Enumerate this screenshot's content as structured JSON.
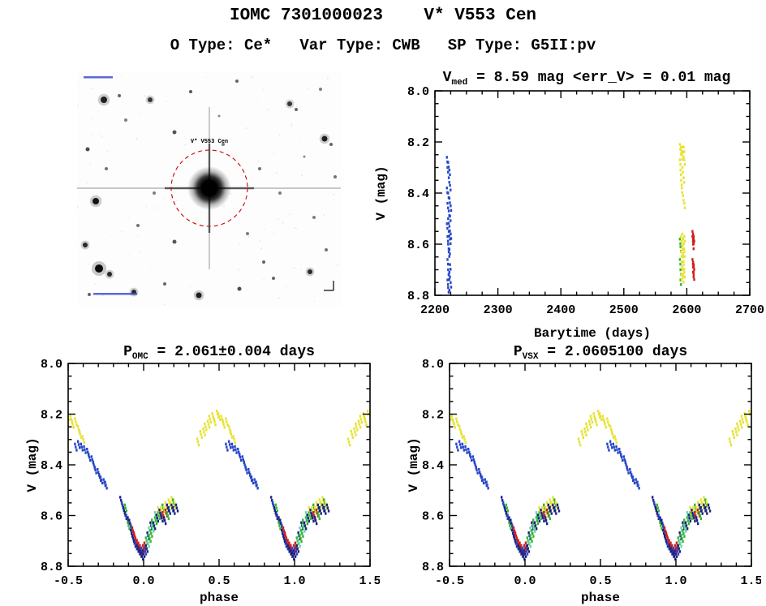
{
  "header": {
    "title": "IOMC 7301000023    V* V553 Cen",
    "subtitle": "O Type: Ce*   Var Type: CWB   SP Type: G5II:pv"
  },
  "palette": {
    "b": "#2646c8",
    "n": "#1b2380",
    "g": "#2fb52f",
    "c": "#66d9a0",
    "y": "#e6e332",
    "r": "#d01f1f"
  },
  "finder": {
    "label": "V* V553 Cen",
    "circle_color": "#cc0000",
    "smudge_color": "#3344cc",
    "stars": [
      [
        33,
        35,
        4,
        0.85
      ],
      [
        52,
        30,
        2,
        0.6
      ],
      [
        90,
        35,
        3,
        0.75
      ],
      [
        140,
        25,
        2,
        0.65
      ],
      [
        197,
        12,
        2,
        0.6
      ],
      [
        262,
        40,
        3,
        0.75
      ],
      [
        270,
        47,
        2,
        0.6
      ],
      [
        300,
        22,
        2,
        0.5
      ],
      [
        305,
        83,
        3.5,
        0.85
      ],
      [
        313,
        90,
        2,
        0.6
      ],
      [
        318,
        130,
        2,
        0.55
      ],
      [
        13,
        96,
        2.5,
        0.7
      ],
      [
        36,
        120,
        2,
        0.55
      ],
      [
        23,
        160,
        4,
        0.9
      ],
      [
        10,
        214,
        3,
        0.8
      ],
      [
        27,
        243,
        5,
        0.95
      ],
      [
        40,
        250,
        3,
        0.8
      ],
      [
        70,
        272,
        3,
        0.8
      ],
      [
        108,
        262,
        2,
        0.6
      ],
      [
        150,
        276,
        3.5,
        0.85
      ],
      [
        200,
        268,
        2.5,
        0.7
      ],
      [
        242,
        255,
        2,
        0.6
      ],
      [
        287,
        247,
        3,
        0.8
      ],
      [
        307,
        220,
        2,
        0.55
      ],
      [
        292,
        180,
        2,
        0.5
      ],
      [
        250,
        150,
        2,
        0.5
      ],
      [
        225,
        120,
        2,
        0.55
      ],
      [
        180,
        90,
        2,
        0.5
      ],
      [
        120,
        75,
        2.5,
        0.65
      ],
      [
        95,
        150,
        2,
        0.5
      ],
      [
        75,
        190,
        2,
        0.55
      ],
      [
        120,
        210,
        2.5,
        0.65
      ],
      [
        210,
        200,
        2,
        0.5
      ],
      [
        230,
        235,
        2,
        0.6
      ],
      [
        60,
        60,
        2,
        0.5
      ],
      [
        175,
        55,
        1.5,
        0.45
      ],
      [
        280,
        105,
        1.5,
        0.45
      ],
      [
        15,
        275,
        2,
        0.6
      ]
    ]
  },
  "chart_data": [
    {
      "id": "lightcurve",
      "type": "scatter",
      "title_parts": {
        "pre": "V",
        "sub": "med",
        "post": " = 8.59 mag <err_V> = 0.01 mag"
      },
      "xlabel": "Barytime (days)",
      "ylabel": "V (mag)",
      "xlim": [
        2200,
        2700
      ],
      "ylim": [
        8.0,
        8.8
      ],
      "xticks": [
        2200,
        2300,
        2400,
        2500,
        2600,
        2700
      ],
      "xtick_labels": [
        "2200",
        "2300",
        "2400",
        "2500",
        "2600",
        "2700"
      ],
      "yticks": [
        8.0,
        8.2,
        8.4,
        8.6,
        8.8
      ],
      "ytick_labels": [
        "8.0",
        "8.2",
        "8.4",
        "8.6",
        "8.8"
      ],
      "fold": false,
      "points": [
        [
          2219,
          8.26,
          "b"
        ],
        [
          2219,
          8.38,
          "b"
        ],
        [
          2219,
          8.52,
          "b"
        ],
        [
          2220,
          8.3,
          "b"
        ],
        [
          2220,
          8.44,
          "b"
        ],
        [
          2220,
          8.57,
          "b"
        ],
        [
          2220,
          8.66,
          "b"
        ],
        [
          2220,
          8.74,
          "b"
        ],
        [
          2221,
          8.28,
          "b"
        ],
        [
          2221,
          8.4,
          "b"
        ],
        [
          2221,
          8.5,
          "b"
        ],
        [
          2221,
          8.6,
          "b"
        ],
        [
          2221,
          8.7,
          "b"
        ],
        [
          2221,
          8.77,
          "b"
        ],
        [
          2222,
          8.34,
          "b"
        ],
        [
          2222,
          8.47,
          "b"
        ],
        [
          2222,
          8.55,
          "b"
        ],
        [
          2222,
          8.63,
          "b"
        ],
        [
          2222,
          8.72,
          "b"
        ],
        [
          2223,
          8.31,
          "b"
        ],
        [
          2223,
          8.42,
          "b"
        ],
        [
          2223,
          8.53,
          "b"
        ],
        [
          2223,
          8.62,
          "b"
        ],
        [
          2223,
          8.71,
          "b"
        ],
        [
          2223,
          8.78,
          "b"
        ],
        [
          2224,
          8.37,
          "b"
        ],
        [
          2224,
          8.49,
          "b"
        ],
        [
          2224,
          8.58,
          "b"
        ],
        [
          2224,
          8.68,
          "b"
        ],
        [
          2225,
          8.45,
          "b"
        ],
        [
          2225,
          8.56,
          "b"
        ],
        [
          2225,
          8.75,
          "b"
        ],
        [
          2589,
          8.21,
          "y"
        ],
        [
          2589,
          8.27,
          "y"
        ],
        [
          2590,
          8.23,
          "y"
        ],
        [
          2590,
          8.31,
          "y"
        ],
        [
          2591,
          8.22,
          "y"
        ],
        [
          2591,
          8.35,
          "y"
        ],
        [
          2592,
          8.25,
          "y"
        ],
        [
          2592,
          8.38,
          "y"
        ],
        [
          2593,
          8.22,
          "y"
        ],
        [
          2593,
          8.3,
          "y"
        ],
        [
          2594,
          8.24,
          "y"
        ],
        [
          2594,
          8.41,
          "y"
        ],
        [
          2595,
          8.22,
          "y"
        ],
        [
          2595,
          8.34,
          "y"
        ],
        [
          2596,
          8.27,
          "y"
        ],
        [
          2596,
          8.44,
          "y"
        ],
        [
          2589,
          8.58,
          "g"
        ],
        [
          2589,
          8.66,
          "g"
        ],
        [
          2590,
          8.61,
          "g"
        ],
        [
          2590,
          8.7,
          "g"
        ],
        [
          2590,
          8.74,
          "g"
        ],
        [
          2591,
          8.57,
          "y"
        ],
        [
          2591,
          8.63,
          "y"
        ],
        [
          2591,
          8.72,
          "y"
        ],
        [
          2592,
          8.59,
          "y"
        ],
        [
          2592,
          8.67,
          "y"
        ],
        [
          2593,
          8.56,
          "y"
        ],
        [
          2593,
          8.62,
          "y"
        ],
        [
          2593,
          8.7,
          "y"
        ],
        [
          2594,
          8.58,
          "y"
        ],
        [
          2594,
          8.65,
          "y"
        ],
        [
          2594,
          8.73,
          "y"
        ],
        [
          2595,
          8.6,
          "y"
        ],
        [
          2595,
          8.68,
          "y"
        ],
        [
          2596,
          8.57,
          "y"
        ],
        [
          2596,
          8.63,
          "y"
        ],
        [
          2596,
          8.71,
          "y"
        ],
        [
          2609,
          8.55,
          "r"
        ],
        [
          2609,
          8.57,
          "r"
        ],
        [
          2610,
          8.56,
          "r"
        ],
        [
          2610,
          8.58,
          "r"
        ],
        [
          2610,
          8.6,
          "r"
        ],
        [
          2611,
          8.57,
          "r"
        ],
        [
          2609,
          8.66,
          "r"
        ],
        [
          2610,
          8.67,
          "r"
        ],
        [
          2610,
          8.69,
          "r"
        ],
        [
          2610,
          8.71,
          "r"
        ],
        [
          2611,
          8.68,
          "r"
        ],
        [
          2611,
          8.72,
          "r"
        ]
      ]
    },
    {
      "id": "phase_omc",
      "type": "scatter",
      "title_parts": {
        "pre": "P",
        "sub": "OMC",
        "post": " = 2.061±0.004 days"
      },
      "xlabel": "phase",
      "ylabel": "V (mag)",
      "xlim": [
        -0.5,
        1.5
      ],
      "ylim": [
        8.0,
        8.8
      ],
      "xticks": [
        -0.5,
        0.0,
        0.5,
        1.0,
        1.5
      ],
      "xtick_labels": [
        "-0.5",
        "0.0",
        "0.5",
        "1.0",
        "1.5"
      ],
      "yticks": [
        8.0,
        8.2,
        8.4,
        8.6,
        8.8
      ],
      "ytick_labels": [
        "8.0",
        "8.2",
        "8.4",
        "8.6",
        "8.8"
      ],
      "fold": true,
      "points": [
        [
          0.36,
          8.31,
          "y"
        ],
        [
          0.38,
          8.28,
          "y"
        ],
        [
          0.4,
          8.27,
          "y"
        ],
        [
          0.41,
          8.25,
          "y"
        ],
        [
          0.43,
          8.24,
          "y"
        ],
        [
          0.44,
          8.22,
          "y"
        ],
        [
          0.46,
          8.21,
          "y"
        ],
        [
          0.47,
          8.23,
          "y"
        ],
        [
          0.49,
          8.2,
          "y"
        ],
        [
          0.5,
          8.21,
          "y"
        ],
        [
          0.52,
          8.22,
          "y"
        ],
        [
          0.53,
          8.24,
          "y"
        ],
        [
          0.55,
          8.23,
          "y"
        ],
        [
          0.57,
          8.26,
          "y"
        ],
        [
          0.58,
          8.28,
          "y"
        ],
        [
          0.6,
          8.3,
          "y"
        ],
        [
          0.55,
          8.33,
          "b"
        ],
        [
          0.57,
          8.32,
          "b"
        ],
        [
          0.59,
          8.33,
          "b"
        ],
        [
          0.61,
          8.34,
          "b"
        ],
        [
          0.63,
          8.35,
          "b"
        ],
        [
          0.64,
          8.37,
          "b"
        ],
        [
          0.66,
          8.38,
          "b"
        ],
        [
          0.67,
          8.4,
          "b"
        ],
        [
          0.68,
          8.42,
          "b"
        ],
        [
          0.7,
          8.43,
          "b"
        ],
        [
          0.71,
          8.45,
          "b"
        ],
        [
          0.72,
          8.46,
          "b"
        ],
        [
          0.74,
          8.47,
          "b"
        ],
        [
          0.75,
          8.48,
          "b"
        ],
        [
          0.85,
          8.54,
          "n"
        ],
        [
          0.86,
          8.56,
          "b"
        ],
        [
          0.87,
          8.58,
          "n"
        ],
        [
          0.88,
          8.57,
          "g"
        ],
        [
          0.88,
          8.6,
          "n"
        ],
        [
          0.89,
          8.61,
          "b"
        ],
        [
          0.9,
          8.62,
          "n"
        ],
        [
          0.9,
          8.64,
          "g"
        ],
        [
          0.91,
          8.63,
          "n"
        ],
        [
          0.92,
          8.65,
          "b"
        ],
        [
          0.92,
          8.67,
          "n"
        ],
        [
          0.93,
          8.66,
          "r"
        ],
        [
          0.93,
          8.69,
          "n"
        ],
        [
          0.94,
          8.68,
          "r"
        ],
        [
          0.94,
          8.71,
          "n"
        ],
        [
          0.95,
          8.7,
          "r"
        ],
        [
          0.95,
          8.72,
          "b"
        ],
        [
          0.96,
          8.71,
          "r"
        ],
        [
          0.96,
          8.73,
          "n"
        ],
        [
          0.97,
          8.72,
          "r"
        ],
        [
          0.97,
          8.74,
          "n"
        ],
        [
          0.98,
          8.73,
          "r"
        ],
        [
          0.98,
          8.75,
          "n"
        ],
        [
          0.99,
          8.74,
          "b"
        ],
        [
          0.99,
          8.76,
          "n"
        ],
        [
          0.0,
          8.75,
          "n"
        ],
        [
          0.0,
          8.73,
          "r"
        ],
        [
          0.01,
          8.74,
          "b"
        ],
        [
          0.01,
          8.72,
          "r"
        ],
        [
          0.02,
          8.73,
          "n"
        ],
        [
          0.02,
          8.7,
          "g"
        ],
        [
          0.03,
          8.71,
          "c"
        ],
        [
          0.03,
          8.68,
          "n"
        ],
        [
          0.04,
          8.69,
          "g"
        ],
        [
          0.04,
          8.66,
          "c"
        ],
        [
          0.05,
          8.67,
          "g"
        ],
        [
          0.05,
          8.64,
          "n"
        ],
        [
          0.06,
          8.65,
          "c"
        ],
        [
          0.06,
          8.63,
          "g"
        ],
        [
          0.07,
          8.64,
          "n"
        ],
        [
          0.08,
          8.62,
          "g"
        ],
        [
          0.08,
          8.6,
          "c"
        ],
        [
          0.09,
          8.61,
          "n"
        ],
        [
          0.1,
          8.6,
          "g"
        ],
        [
          0.1,
          8.58,
          "y"
        ],
        [
          0.11,
          8.59,
          "n"
        ],
        [
          0.12,
          8.58,
          "y"
        ],
        [
          0.12,
          8.61,
          "n"
        ],
        [
          0.13,
          8.57,
          "g"
        ],
        [
          0.13,
          8.6,
          "r"
        ],
        [
          0.14,
          8.58,
          "y"
        ],
        [
          0.14,
          8.62,
          "n"
        ],
        [
          0.15,
          8.56,
          "y"
        ],
        [
          0.15,
          8.59,
          "r"
        ],
        [
          0.16,
          8.57,
          "n"
        ],
        [
          0.16,
          8.6,
          "g"
        ],
        [
          0.17,
          8.55,
          "y"
        ],
        [
          0.17,
          8.58,
          "n"
        ],
        [
          0.18,
          8.56,
          "y"
        ],
        [
          0.19,
          8.57,
          "n"
        ],
        [
          0.19,
          8.54,
          "y"
        ],
        [
          0.2,
          8.55,
          "g"
        ],
        [
          0.2,
          8.58,
          "n"
        ],
        [
          0.21,
          8.56,
          "y"
        ],
        [
          0.22,
          8.57,
          "n"
        ]
      ]
    },
    {
      "id": "phase_vsx",
      "type": "scatter",
      "title_parts": {
        "pre": "P",
        "sub": "VSX",
        "post": " = 2.0605100 days"
      },
      "xlabel": "phase",
      "ylabel": "V (mag)",
      "xlim": [
        -0.5,
        1.5
      ],
      "ylim": [
        8.0,
        8.8
      ],
      "xticks": [
        -0.5,
        0.0,
        0.5,
        1.0,
        1.5
      ],
      "xtick_labels": [
        "-0.5",
        "0.0",
        "0.5",
        "1.0",
        "1.5"
      ],
      "yticks": [
        8.0,
        8.2,
        8.4,
        8.6,
        8.8
      ],
      "ytick_labels": [
        "8.0",
        "8.2",
        "8.4",
        "8.6",
        "8.8"
      ],
      "fold": true,
      "points": "phase_omc"
    }
  ]
}
